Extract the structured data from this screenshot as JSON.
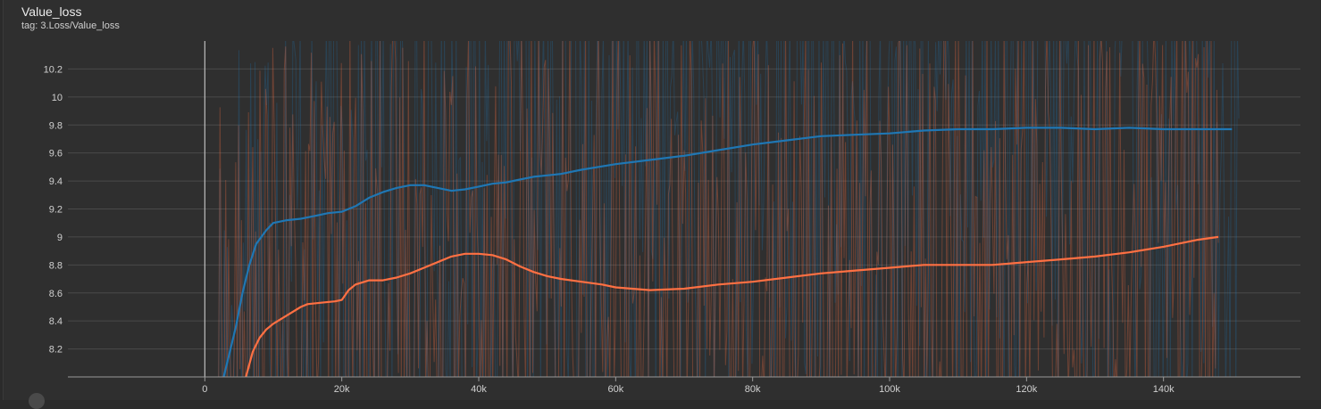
{
  "card": {
    "title": "Value_loss",
    "subtitle": "tag: 3.Loss/Value_loss"
  },
  "colors": {
    "background": "#2f2f2f",
    "grid": "#4a4a4a",
    "series_blue": "#1f77b4",
    "series_orange": "#ff7043"
  },
  "chart_data": {
    "type": "line",
    "title": "Value_loss",
    "subtitle": "tag: 3.Loss/Value_loss",
    "xlabel": "",
    "ylabel": "",
    "xlim": [
      -20000,
      160000
    ],
    "ylim": [
      8.0,
      10.4
    ],
    "grid": true,
    "x_ticks": [
      0,
      20000,
      40000,
      60000,
      80000,
      100000,
      120000,
      140000
    ],
    "x_tick_labels": [
      "0",
      "20k",
      "40k",
      "60k",
      "80k",
      "100k",
      "120k",
      "140k"
    ],
    "y_ticks": [
      8.2,
      8.4,
      8.6,
      8.8,
      9,
      9.2,
      9.4,
      9.6,
      9.8,
      10,
      10.2
    ],
    "y_tick_labels": [
      "8.2",
      "8.4",
      "8.6",
      "8.8",
      "9",
      "9.2",
      "9.4",
      "9.6",
      "9.8",
      "10",
      "10.2"
    ],
    "series": [
      {
        "color": "#1f77b4",
        "raw_range": [
          2000,
          151000
        ],
        "x": [
          2500,
          3500,
          4500,
          5500,
          6500,
          7500,
          9000,
          10000,
          12000,
          14000,
          16000,
          18000,
          20000,
          22000,
          24000,
          26000,
          28000,
          30000,
          32000,
          34000,
          36000,
          38000,
          40000,
          42000,
          44000,
          46000,
          48000,
          50000,
          52000,
          55000,
          60000,
          65000,
          70000,
          75000,
          80000,
          85000,
          90000,
          95000,
          100000,
          105000,
          110000,
          115000,
          120000,
          125000,
          130000,
          135000,
          140000,
          145000,
          150000
        ],
        "y": [
          7.95,
          8.15,
          8.35,
          8.6,
          8.8,
          8.95,
          9.05,
          9.1,
          9.12,
          9.13,
          9.15,
          9.17,
          9.18,
          9.22,
          9.28,
          9.32,
          9.35,
          9.37,
          9.37,
          9.35,
          9.33,
          9.34,
          9.36,
          9.38,
          9.39,
          9.41,
          9.43,
          9.44,
          9.45,
          9.48,
          9.52,
          9.55,
          9.58,
          9.62,
          9.66,
          9.69,
          9.72,
          9.73,
          9.74,
          9.76,
          9.77,
          9.77,
          9.78,
          9.78,
          9.77,
          9.78,
          9.77,
          9.77,
          9.77
        ]
      },
      {
        "color": "#ff7043",
        "raw_range": [
          2000,
          148000
        ],
        "x": [
          6000,
          7000,
          8000,
          9000,
          10000,
          12000,
          14000,
          15000,
          17000,
          19000,
          20000,
          21000,
          22000,
          24000,
          26000,
          28000,
          30000,
          32000,
          34000,
          36000,
          38000,
          40000,
          42000,
          44000,
          46000,
          48000,
          50000,
          52000,
          55000,
          58000,
          60000,
          65000,
          70000,
          75000,
          80000,
          85000,
          90000,
          95000,
          100000,
          105000,
          110000,
          115000,
          120000,
          125000,
          130000,
          135000,
          140000,
          145000,
          148000
        ],
        "y": [
          8.0,
          8.18,
          8.28,
          8.34,
          8.38,
          8.44,
          8.5,
          8.52,
          8.53,
          8.54,
          8.55,
          8.62,
          8.66,
          8.69,
          8.69,
          8.71,
          8.74,
          8.78,
          8.82,
          8.86,
          8.88,
          8.88,
          8.87,
          8.84,
          8.79,
          8.75,
          8.72,
          8.7,
          8.68,
          8.66,
          8.64,
          8.62,
          8.63,
          8.66,
          8.68,
          8.71,
          8.74,
          8.76,
          8.78,
          8.8,
          8.8,
          8.8,
          8.82,
          8.84,
          8.86,
          8.89,
          8.93,
          8.98,
          9.0
        ]
      }
    ]
  }
}
